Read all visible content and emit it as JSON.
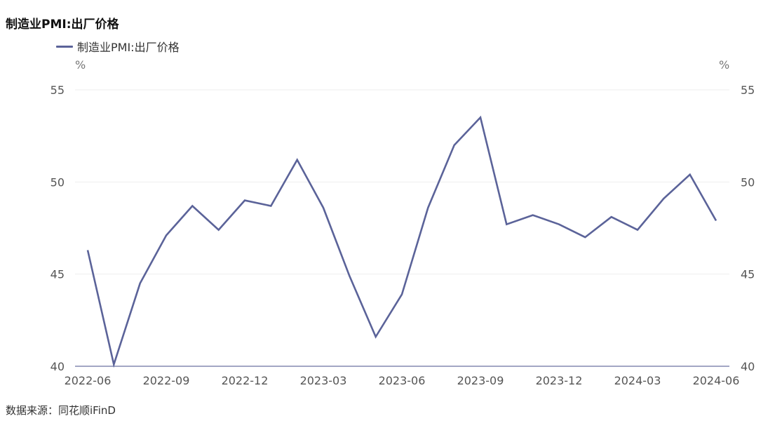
{
  "title": "制造业PMI:出厂价格",
  "source": "数据来源：同花顺iFinD",
  "chart_data": {
    "type": "line",
    "title": "制造业PMI:出厂价格",
    "ylabel_left": "%",
    "ylabel_right": "%",
    "ylim": [
      40,
      55
    ],
    "yticks": [
      40,
      45,
      50,
      55
    ],
    "x_tick_labels": [
      "2022-06",
      "2022-09",
      "2022-12",
      "2023-03",
      "2023-06",
      "2023-09",
      "2023-12",
      "2024-03",
      "2024-06"
    ],
    "x": [
      "2022-06",
      "2022-07",
      "2022-08",
      "2022-09",
      "2022-10",
      "2022-11",
      "2022-12",
      "2023-01",
      "2023-02",
      "2023-03",
      "2023-04",
      "2023-05",
      "2023-06",
      "2023-07",
      "2023-08",
      "2023-09",
      "2023-10",
      "2023-11",
      "2023-12",
      "2024-01",
      "2024-02",
      "2024-03",
      "2024-04",
      "2024-05",
      "2024-06"
    ],
    "series": [
      {
        "name": "制造业PMI:出厂价格",
        "color": "#5b6399",
        "values": [
          46.3,
          40.1,
          44.5,
          47.1,
          48.7,
          47.4,
          49.0,
          48.7,
          51.2,
          48.6,
          44.9,
          41.6,
          43.9,
          48.6,
          52.0,
          53.5,
          47.7,
          48.2,
          47.7,
          47.0,
          48.1,
          47.4,
          49.1,
          50.4,
          47.9
        ]
      }
    ],
    "grid": true,
    "legend_position": "top-left"
  }
}
